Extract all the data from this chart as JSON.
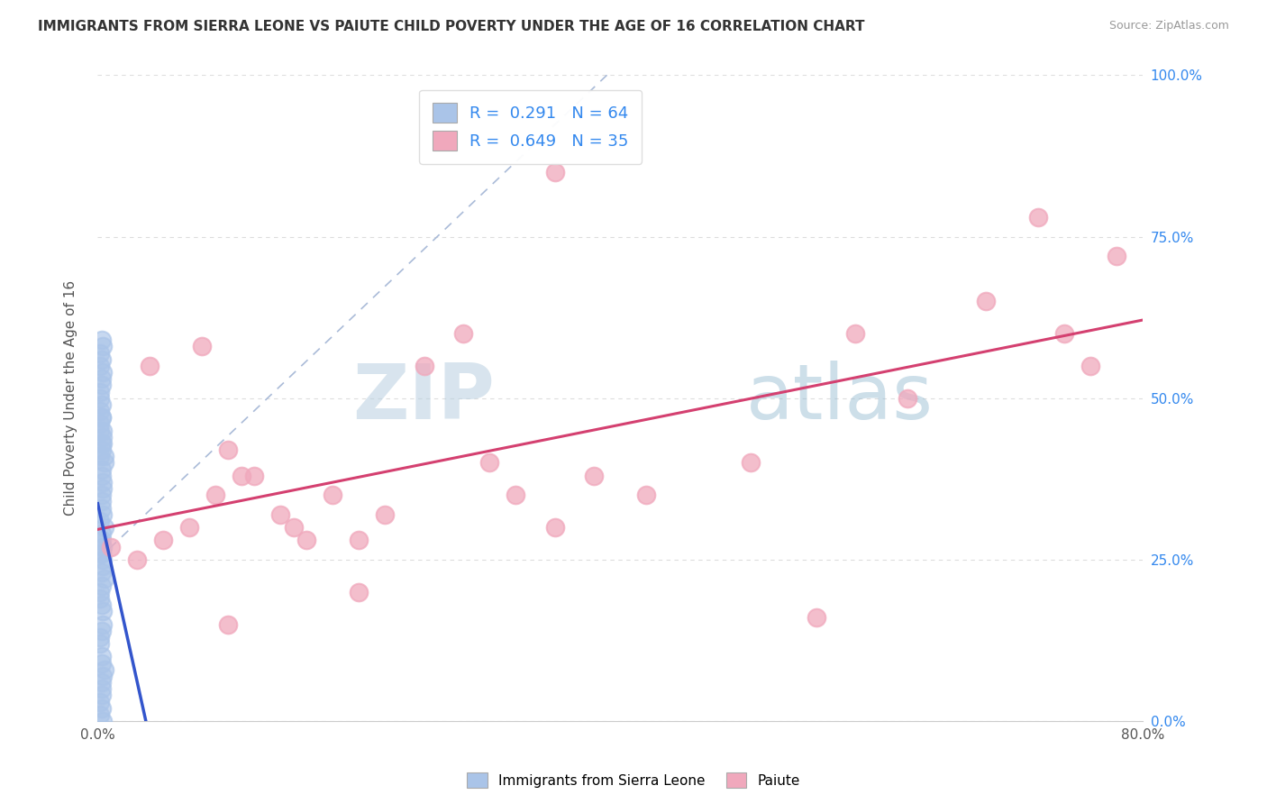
{
  "title": "IMMIGRANTS FROM SIERRA LEONE VS PAIUTE CHILD POVERTY UNDER THE AGE OF 16 CORRELATION CHART",
  "source": "Source: ZipAtlas.com",
  "xlabel_blue": "Immigrants from Sierra Leone",
  "xlabel_pink": "Paiute",
  "ylabel": "Child Poverty Under the Age of 16",
  "watermark_zip": "ZIP",
  "watermark_atlas": "atlas",
  "blue_R": 0.291,
  "blue_N": 64,
  "pink_R": 0.649,
  "pink_N": 35,
  "xlim": [
    0.0,
    0.8
  ],
  "ylim": [
    0.0,
    1.0
  ],
  "xtick_pos": [
    0.0,
    0.8
  ],
  "xtick_labels": [
    "0.0%",
    "80.0%"
  ],
  "ytick_pos": [
    0.0,
    0.25,
    0.5,
    0.75,
    1.0
  ],
  "ytick_labels": [
    "0.0%",
    "25.0%",
    "50.0%",
    "75.0%",
    "100.0%"
  ],
  "blue_color": "#aac4e8",
  "pink_color": "#f0a8bc",
  "blue_solid_color": "#3355cc",
  "blue_dashed_color": "#aabbd8",
  "pink_line_color": "#d44070",
  "background_color": "#ffffff",
  "grid_color": "#dddddd",
  "title_color": "#333333",
  "legend_color": "#3388ee",
  "blue_x": [
    0.003,
    0.004,
    0.005,
    0.002,
    0.003,
    0.004,
    0.002,
    0.005,
    0.003,
    0.004,
    0.002,
    0.003,
    0.004,
    0.002,
    0.005,
    0.003,
    0.002,
    0.004,
    0.003,
    0.005,
    0.002,
    0.003,
    0.004,
    0.002,
    0.003,
    0.005,
    0.003,
    0.002,
    0.004,
    0.003,
    0.003,
    0.002,
    0.004,
    0.003,
    0.003,
    0.002,
    0.004,
    0.003,
    0.002,
    0.003,
    0.004,
    0.003,
    0.002,
    0.003,
    0.004,
    0.003,
    0.002,
    0.003,
    0.004,
    0.003,
    0.003,
    0.002,
    0.004,
    0.003,
    0.002,
    0.003,
    0.004,
    0.003,
    0.002,
    0.003,
    0.004,
    0.003,
    0.002,
    0.003
  ],
  "blue_y": [
    0.47,
    0.43,
    0.4,
    0.45,
    0.42,
    0.44,
    0.46,
    0.41,
    0.38,
    0.36,
    0.48,
    0.35,
    0.32,
    0.5,
    0.3,
    0.33,
    0.28,
    0.25,
    0.26,
    0.22,
    0.2,
    0.18,
    0.15,
    0.13,
    0.1,
    0.08,
    0.05,
    0.03,
    0.0,
    0.02,
    0.52,
    0.55,
    0.58,
    0.53,
    0.49,
    0.51,
    0.54,
    0.56,
    0.57,
    0.59,
    0.27,
    0.29,
    0.31,
    0.34,
    0.37,
    0.39,
    0.41,
    0.43,
    0.45,
    0.47,
    0.21,
    0.19,
    0.17,
    0.14,
    0.12,
    0.09,
    0.07,
    0.04,
    0.01,
    0.06,
    0.24,
    0.23,
    0.26,
    0.28
  ],
  "pink_x": [
    0.01,
    0.03,
    0.05,
    0.07,
    0.09,
    0.11,
    0.14,
    0.16,
    0.04,
    0.08,
    0.1,
    0.12,
    0.15,
    0.18,
    0.2,
    0.22,
    0.25,
    0.28,
    0.32,
    0.35,
    0.38,
    0.42,
    0.5,
    0.58,
    0.62,
    0.68,
    0.72,
    0.74,
    0.76,
    0.78,
    0.35,
    0.3,
    0.2,
    0.1,
    0.55
  ],
  "pink_y": [
    0.27,
    0.25,
    0.28,
    0.3,
    0.35,
    0.38,
    0.32,
    0.28,
    0.55,
    0.58,
    0.42,
    0.38,
    0.3,
    0.35,
    0.28,
    0.32,
    0.55,
    0.6,
    0.35,
    0.3,
    0.38,
    0.35,
    0.4,
    0.6,
    0.5,
    0.65,
    0.78,
    0.6,
    0.55,
    0.72,
    0.85,
    0.4,
    0.2,
    0.15,
    0.16
  ]
}
